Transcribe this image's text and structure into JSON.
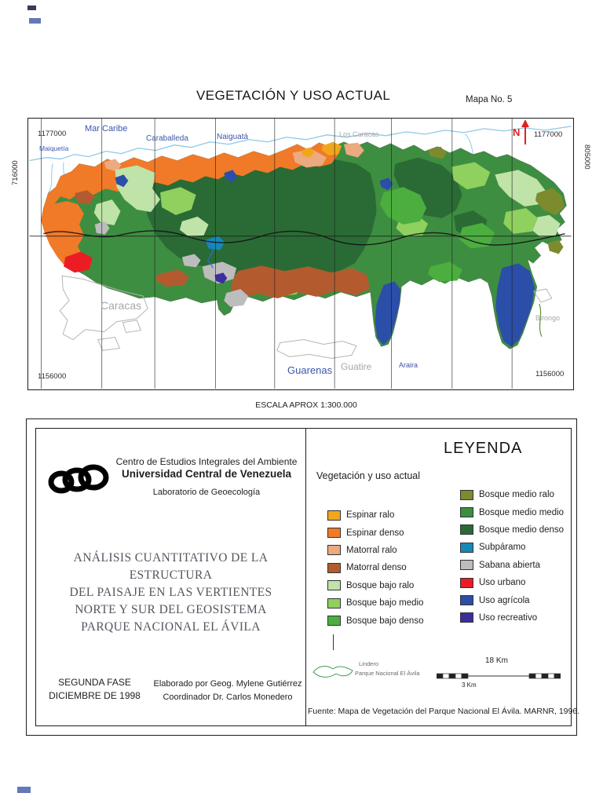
{
  "page": {
    "title": "VEGETACIÓN Y USO ACTUAL",
    "map_number": "Mapa No. 5",
    "scale_text": "ESCALA APROX  1:300.000"
  },
  "map": {
    "north_label": "N",
    "coordinates": {
      "top_left": "1177000",
      "top_right": "1177000",
      "bottom_left": "1156000",
      "bottom_right": "1156000",
      "left_side": "716000",
      "right_side": "805000"
    },
    "labels": {
      "mar_caribe": "Mar Caribe",
      "maiquetia": "Maiquetía",
      "caraballeda": "Caraballeda",
      "naiguata": "Naiguatá",
      "los_caracas": "Los Caracas",
      "caracas": "Caracas",
      "guarenas": "Guarenas",
      "guatire": "Guatire",
      "araira": "Araira",
      "birongo": "Birongo"
    }
  },
  "credits": {
    "institution_line1": "Centro de Estudios Integrales del Ambiente",
    "institution_line2": "Universidad Central de Venezuela",
    "institution_line3": "Laboratorio de Geoecología",
    "project_title_lines": [
      "ANÁLISIS CUANTITATIVO DE LA ESTRUCTURA",
      "DEL PAISAJE EN LAS VERTIENTES",
      "NORTE Y SUR DEL GEOSISTEMA",
      "PARQUE NACIONAL EL ÁVILA"
    ],
    "phase_line1": "SEGUNDA FASE",
    "phase_line2": "DICIEMBRE DE 1998",
    "author_line1": "Elaborado por Geog. Mylene Gutiérrez",
    "author_line2": "Coordinador Dr. Carlos Monedero"
  },
  "legend": {
    "title": "LEYENDA",
    "subtitle": "Vegetación y uso actual",
    "items_left": [
      {
        "label": "Espinar ralo",
        "color": "#F2A71B"
      },
      {
        "label": "Espinar denso",
        "color": "#F07A28"
      },
      {
        "label": "Matorral ralo",
        "color": "#EBAA80"
      },
      {
        "label": "Matorral denso",
        "color": "#B35B2E"
      },
      {
        "label": "Bosque bajo ralo",
        "color": "#BFE3A8"
      },
      {
        "label": "Bosque bajo medio",
        "color": "#8FD05E"
      },
      {
        "label": "Bosque bajo denso",
        "color": "#4BAE3E"
      }
    ],
    "items_right": [
      {
        "label": "Bosque medio ralo",
        "color": "#7D8B2F"
      },
      {
        "label": "Bosque medio medio",
        "color": "#3C8F41"
      },
      {
        "label": "Bosque medio denso",
        "color": "#2A6B35"
      },
      {
        "label": "Subpáramo",
        "color": "#1787B8"
      },
      {
        "label": "Sabana abierta",
        "color": "#BDBDBD"
      },
      {
        "label": "Uso urbano",
        "color": "#EC1C24"
      },
      {
        "label": "Uso agrícola",
        "color": "#2B4EA8"
      },
      {
        "label": "Uso recreativo",
        "color": "#3B2E9E"
      }
    ],
    "lindero_line1": "Lindero",
    "lindero_line2": "Parque Nacional El Ávila",
    "scalebar_top": "18 Km",
    "scalebar_bottom": "3 Km",
    "source": "Fuente: Mapa de Vegetación del Parque Nacional El Ávila. MARNR, 1996."
  }
}
